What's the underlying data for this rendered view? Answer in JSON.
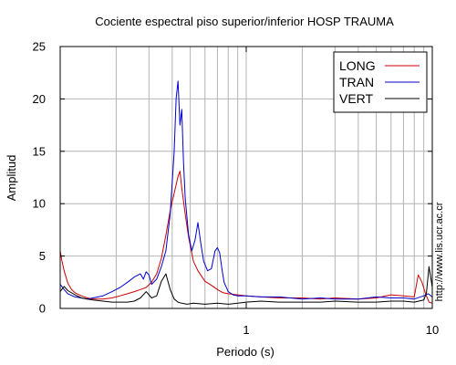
{
  "chart_data": {
    "type": "line",
    "title": "Cociente espectral piso superior/inferior  HOSP TRAUMA",
    "xlabel": "Periodo (s)",
    "ylabel": "Amplitud",
    "x_scale": "log",
    "xlim": [
      0.1,
      10
    ],
    "ylim": [
      0,
      25
    ],
    "x_ticks": [
      {
        "value": 1,
        "label": "1"
      },
      {
        "value": 10,
        "label": "10"
      }
    ],
    "y_ticks": [
      {
        "value": 0,
        "label": "0"
      },
      {
        "value": 5,
        "label": "5"
      },
      {
        "value": 10,
        "label": "10"
      },
      {
        "value": 15,
        "label": "15"
      },
      {
        "value": 20,
        "label": "20"
      },
      {
        "value": 25,
        "label": "25"
      }
    ],
    "grid": true,
    "legend_position": "top-right",
    "series": [
      {
        "name": "LONG",
        "color": "#cc0000",
        "x": [
          0.1,
          0.102,
          0.105,
          0.11,
          0.115,
          0.12,
          0.13,
          0.14,
          0.15,
          0.17,
          0.19,
          0.21,
          0.23,
          0.25,
          0.27,
          0.29,
          0.31,
          0.33,
          0.35,
          0.37,
          0.39,
          0.41,
          0.43,
          0.44,
          0.45,
          0.47,
          0.49,
          0.52,
          0.55,
          0.6,
          0.65,
          0.7,
          0.75,
          0.8,
          0.9,
          1.0,
          1.2,
          1.5,
          2.0,
          2.5,
          3.0,
          4.0,
          5.0,
          6.0,
          7.0,
          8.0,
          8.4,
          8.8,
          9.2,
          9.6,
          10.0
        ],
        "values": [
          5.5,
          4.6,
          3.6,
          2.4,
          1.8,
          1.5,
          1.2,
          1.0,
          0.9,
          0.9,
          1.0,
          1.2,
          1.4,
          1.6,
          1.8,
          2.0,
          2.5,
          3.3,
          4.8,
          7.0,
          9.3,
          11.0,
          12.6,
          13.1,
          11.5,
          9.0,
          6.8,
          4.5,
          3.6,
          2.6,
          2.2,
          1.8,
          1.5,
          1.4,
          1.3,
          1.2,
          1.1,
          1.0,
          1.0,
          0.9,
          1.0,
          0.9,
          1.0,
          1.3,
          1.2,
          1.1,
          3.2,
          2.5,
          1.4,
          0.6,
          0.5
        ]
      },
      {
        "name": "TRAN",
        "color": "#0000cc",
        "x": [
          0.1,
          0.105,
          0.11,
          0.12,
          0.13,
          0.14,
          0.15,
          0.17,
          0.19,
          0.21,
          0.23,
          0.25,
          0.27,
          0.28,
          0.29,
          0.3,
          0.31,
          0.33,
          0.35,
          0.37,
          0.39,
          0.41,
          0.42,
          0.43,
          0.44,
          0.45,
          0.46,
          0.47,
          0.49,
          0.51,
          0.53,
          0.55,
          0.57,
          0.59,
          0.62,
          0.65,
          0.68,
          0.7,
          0.72,
          0.74,
          0.76,
          0.8,
          0.85,
          0.9,
          1.0,
          1.2,
          1.5,
          2.0,
          2.5,
          3.0,
          4.0,
          5.0,
          6.0,
          7.0,
          8.0,
          9.0,
          9.5,
          10.0
        ],
        "values": [
          2.3,
          1.8,
          1.4,
          1.1,
          1.0,
          0.9,
          1.0,
          1.2,
          1.6,
          2.0,
          2.5,
          3.0,
          3.3,
          2.8,
          3.5,
          3.2,
          2.3,
          2.8,
          4.0,
          5.5,
          9.0,
          15.0,
          20.0,
          21.7,
          17.5,
          19.0,
          14.0,
          10.5,
          7.0,
          5.5,
          6.5,
          8.2,
          6.2,
          4.5,
          3.6,
          3.8,
          5.5,
          5.8,
          5.3,
          3.8,
          2.5,
          1.6,
          1.3,
          1.2,
          1.2,
          1.1,
          1.1,
          0.9,
          1.0,
          0.9,
          0.9,
          1.1,
          1.0,
          1.0,
          0.9,
          1.2,
          1.4,
          1.1
        ]
      },
      {
        "name": "VERT",
        "color": "#000000",
        "x": [
          0.1,
          0.105,
          0.11,
          0.12,
          0.13,
          0.14,
          0.15,
          0.17,
          0.19,
          0.21,
          0.23,
          0.25,
          0.27,
          0.29,
          0.31,
          0.33,
          0.35,
          0.37,
          0.39,
          0.41,
          0.43,
          0.45,
          0.48,
          0.52,
          0.6,
          0.7,
          0.8,
          0.9,
          1.0,
          1.2,
          1.5,
          2.0,
          2.5,
          3.0,
          4.0,
          5.0,
          6.0,
          7.0,
          8.0,
          9.0,
          9.3,
          9.6,
          10.0
        ],
        "values": [
          1.6,
          2.1,
          1.7,
          1.3,
          1.0,
          0.9,
          0.8,
          0.7,
          0.6,
          0.6,
          0.6,
          0.7,
          1.0,
          1.6,
          1.0,
          1.2,
          2.6,
          3.3,
          1.8,
          0.9,
          0.6,
          0.5,
          0.4,
          0.5,
          0.4,
          0.5,
          0.4,
          0.5,
          0.6,
          0.7,
          0.6,
          0.6,
          0.6,
          0.7,
          0.6,
          0.6,
          0.7,
          0.7,
          0.6,
          0.8,
          1.5,
          4.0,
          2.0
        ]
      }
    ]
  },
  "side_credit": "http://www.lis.ucr.ac.cr"
}
